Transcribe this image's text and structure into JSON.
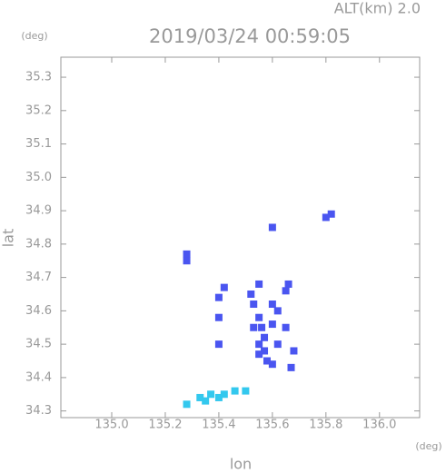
{
  "chart_data": {
    "type": "scatter",
    "title": "2019/03/24 00:59:05",
    "subtitle": "ALT(km) 2.0",
    "y_unit": "(deg)",
    "x_unit": "(deg)",
    "xlabel": "lon",
    "ylabel": "lat",
    "xlim": [
      134.81,
      136.15
    ],
    "ylim": [
      34.28,
      35.36
    ],
    "xticks": [
      {
        "value": 135.0,
        "label": "135.0"
      },
      135.2,
      135.4,
      135.6,
      135.8,
      {
        "value": 136.0,
        "label": "136.0"
      }
    ],
    "yticks": [
      34.3,
      34.4,
      34.5,
      34.6,
      34.7,
      34.8,
      34.9,
      {
        "value": 35.0,
        "label": "35.0"
      },
      35.1,
      35.2,
      35.3
    ],
    "series": [
      {
        "color": "#4a55f0",
        "x": [
          135.28,
          135.28,
          135.4,
          135.42,
          135.4,
          135.4,
          135.52,
          135.53,
          135.55,
          135.55,
          135.56,
          135.57,
          135.55,
          135.57,
          135.6,
          135.62,
          135.6,
          135.65,
          135.66,
          135.65,
          135.62,
          135.6,
          135.68,
          135.67,
          135.6,
          135.8,
          135.82,
          135.58,
          135.55,
          135.53
        ],
        "values": [
          34.77,
          34.75,
          34.64,
          34.67,
          34.58,
          34.5,
          34.65,
          34.62,
          34.68,
          34.58,
          34.55,
          34.52,
          34.5,
          34.48,
          34.56,
          34.6,
          34.62,
          34.66,
          34.68,
          34.55,
          34.5,
          34.44,
          34.48,
          34.43,
          34.85,
          34.88,
          34.89,
          34.45,
          34.47,
          34.55
        ]
      },
      {
        "color": "#33c8ee",
        "x": [
          135.28,
          135.33,
          135.37,
          135.42,
          135.46,
          135.5,
          135.4,
          135.35
        ],
        "values": [
          34.32,
          34.34,
          34.35,
          34.35,
          34.36,
          34.36,
          34.34,
          34.33
        ]
      }
    ]
  }
}
